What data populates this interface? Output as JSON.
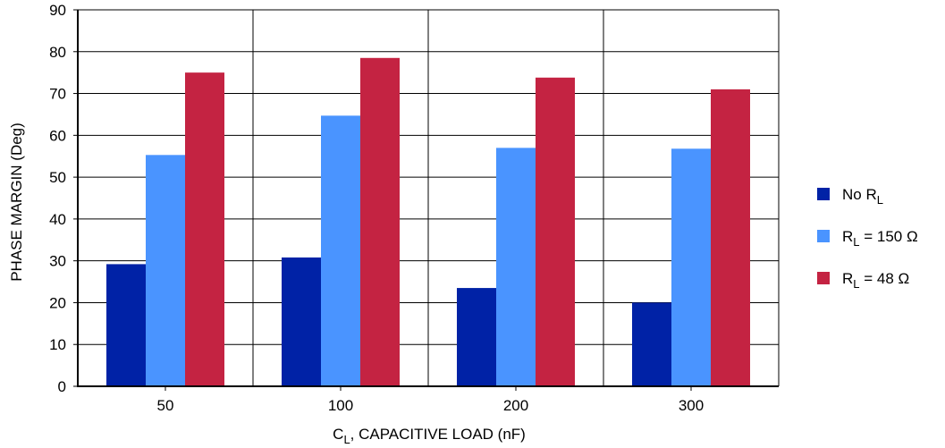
{
  "chart_data": {
    "type": "bar",
    "categories": [
      "50",
      "100",
      "200",
      "300"
    ],
    "series": [
      {
        "name": "No R",
        "name_sub": "L",
        "name_suffix": "",
        "color": "#0022A6",
        "values": [
          29.2,
          30.8,
          23.5,
          20.0
        ]
      },
      {
        "name": "R",
        "name_sub": "L",
        "name_suffix": " = 150 Ω",
        "color": "#4A94FF",
        "values": [
          55.3,
          64.7,
          57.0,
          56.8
        ]
      },
      {
        "name": "R",
        "name_sub": "L",
        "name_suffix": " = 48 Ω",
        "color": "#C42342",
        "values": [
          75.0,
          78.5,
          73.8,
          71.0
        ]
      }
    ],
    "xlabel": "C",
    "xlabel_sub": "L",
    "xlabel_suffix": ", CAPACITIVE LOAD (nF)",
    "ylabel": "PHASE MARGIN (Deg)",
    "ylim": [
      0,
      90
    ],
    "yticks": [
      "0",
      "10",
      "20",
      "30",
      "40",
      "50",
      "60",
      "70",
      "80",
      "90"
    ],
    "grid": true,
    "legend_position": "right"
  }
}
